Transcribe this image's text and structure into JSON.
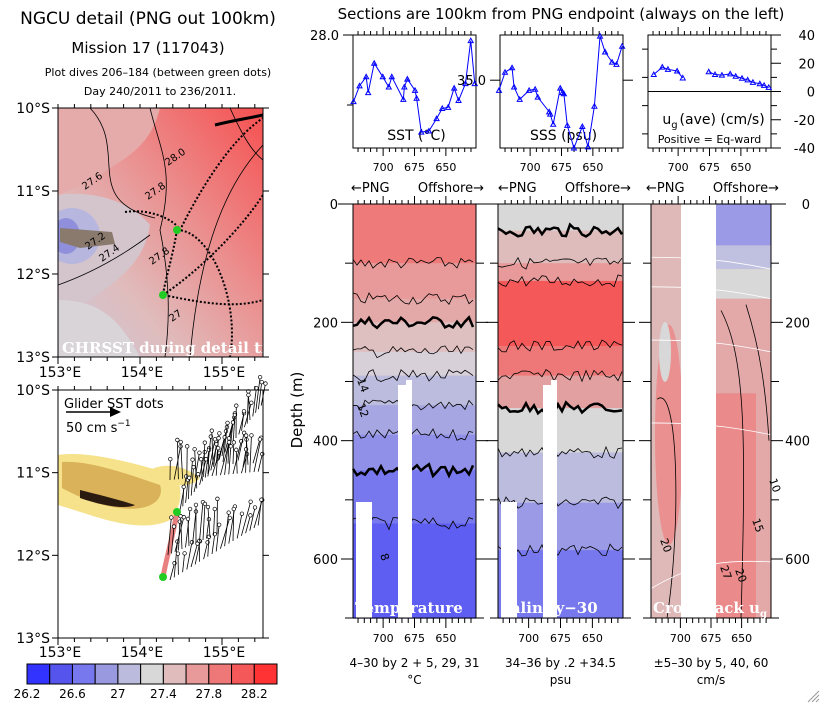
{
  "header": {
    "title": "NGCU detail (PNG out 100km)",
    "mission": "Mission 17 (117043)",
    "dives": "Plot dives 206–184 (between green dots)",
    "days": "Day 240/2011 to 236/2011.",
    "sections_title": "Sections are 100km from PNG endpoint (always on the left)"
  },
  "maps": {
    "lat_labels": [
      "10°S",
      "11°S",
      "12°S",
      "13°S"
    ],
    "lon_labels": [
      "153°E",
      "154°E",
      "155°E"
    ],
    "top": {
      "overlay_label": "GHRSST during detail time",
      "contour_labels": [
        "28.0",
        "27.6",
        "27.8",
        "27.2",
        "27.4",
        "27.8",
        "27"
      ]
    },
    "bottom": {
      "legend_label": "Glider SST dots",
      "scale_label": "50 cm s",
      "scale_exp": "−1"
    },
    "colors": {
      "track_dots": "#000000",
      "green_dots": "#22cc22",
      "track_line": "#e88080"
    }
  },
  "colorbar": {
    "labels": [
      "26.2",
      "26.6",
      "27",
      "27.4",
      "27.8",
      "28.2"
    ],
    "colors": [
      "#3333ff",
      "#5555ee",
      "#7777ee",
      "#9999e0",
      "#bbbbdd",
      "#d8d8d8",
      "#e0bcbc",
      "#e89a9a",
      "#ee7878",
      "#f45858",
      "#ff3333"
    ]
  },
  "direction_labels": {
    "left": "←PNG",
    "right": "Offshore→"
  },
  "depth_label": "Depth (m)",
  "chart_data": [
    {
      "type": "line",
      "id": "sst",
      "label": "SST (°C)",
      "xlim": [
        724,
        626
      ],
      "xticks": [
        700,
        675,
        650
      ],
      "ylim": [
        27.0,
        28.0
      ],
      "ytick_label": "28.0",
      "color": "#0000ff",
      "segments": [
        [
          [
            723.6,
            27.41
          ],
          [
            718.8,
            27.55
          ],
          [
            713.5,
            27.63
          ],
          [
            711.9,
            27.49
          ],
          [
            707.1,
            27.75
          ],
          [
            700.3,
            27.63
          ],
          [
            695.5,
            27.54
          ],
          [
            693.1,
            27.63
          ],
          [
            683.9,
            27.43
          ],
          [
            683.1,
            27.54
          ],
          [
            680.7,
            27.61
          ],
          [
            674.6,
            27.51
          ],
          [
            673.3,
            27.44
          ],
          [
            669.6,
            27.14
          ],
          [
            663.5,
            27.15
          ],
          [
            657.4,
            27.26
          ],
          [
            652.9,
            27.35
          ],
          [
            648.2,
            27.36
          ],
          [
            643.4,
            27.53
          ],
          [
            639.9,
            27.42
          ],
          [
            634.4,
            27.57
          ],
          [
            630.2,
            27.95
          ],
          [
            627.0,
            27.57
          ]
        ]
      ]
    },
    {
      "type": "line",
      "id": "sss",
      "label": "SSS (psu)",
      "xlim": [
        724,
        626
      ],
      "xticks": [
        700,
        675,
        650
      ],
      "ylim": [
        34.4,
        35.4
      ],
      "ytick_label": "35.0",
      "color": "#0000ff",
      "segments": [
        [
          [
            724.8,
            34.91
          ],
          [
            720.0,
            35.07
          ],
          [
            714.4,
            35.11
          ],
          [
            712.8,
            34.94
          ],
          [
            708.3,
            34.83
          ],
          [
            700.8,
            34.91
          ],
          [
            696.0,
            34.92
          ],
          [
            693.9,
            34.85
          ],
          [
            684.8,
            34.72
          ],
          [
            684.0,
            34.7
          ],
          [
            681.6,
            34.61
          ],
          [
            676.0,
            34.93
          ],
          [
            674.2,
            34.89
          ],
          [
            673.1,
            34.88
          ],
          [
            670.4,
            34.6
          ],
          [
            665.1,
            34.4
          ],
          [
            658.4,
            34.59
          ],
          [
            653.9,
            34.41
          ],
          [
            648.8,
            34.77
          ],
          [
            644.3,
            35.39
          ],
          [
            640.3,
            35.25
          ],
          [
            634.7,
            35.16
          ],
          [
            631.2,
            35.14
          ],
          [
            626.7,
            35.3
          ]
        ]
      ]
    },
    {
      "type": "line",
      "id": "ug",
      "label": "u",
      "label_sub": "g",
      "label_rest": "(ave) (cm/s)",
      "note": "Positive = Eq-ward",
      "xlim": [
        724,
        626
      ],
      "xticks": [
        700,
        675,
        650
      ],
      "ylim": [
        -40,
        40
      ],
      "yticks": [
        40,
        20,
        0,
        -20,
        -40
      ],
      "color": "#0000ff",
      "segments": [
        [
          [
            719.4,
            12.0
          ],
          [
            712.6,
            17.3
          ],
          [
            708.1,
            15.7
          ],
          [
            700.8,
            14.5
          ],
          [
            696.3,
            9.6
          ]
        ],
        [
          [
            675.6,
            14.0
          ],
          [
            670.6,
            12.0
          ],
          [
            665.1,
            11.6
          ],
          [
            658.5,
            12.5
          ],
          [
            654.1,
            10.8
          ],
          [
            649.1,
            9.4
          ],
          [
            644.6,
            8.2
          ],
          [
            640.4,
            6.5
          ],
          [
            634.9,
            5.5
          ],
          [
            631.5,
            4.3
          ],
          [
            627.8,
            2.9
          ]
        ]
      ]
    },
    {
      "type": "heatmap",
      "id": "temperature",
      "label": "Temperature",
      "caption": "4–30 by 2 + 5, 29, 31",
      "unit": "°C",
      "xlim": [
        724,
        626
      ],
      "xticks": [
        700,
        675,
        650
      ],
      "ylim": [
        0,
        700
      ],
      "yticks": [
        0,
        200,
        400,
        600
      ],
      "contour_labels": [
        "14",
        "12",
        "8"
      ],
      "bands": [
        {
          "top": 0,
          "bottom": 100,
          "color": "#ee7a7a"
        },
        {
          "top": 100,
          "bottom": 160,
          "color": "#e89a9a"
        },
        {
          "top": 160,
          "bottom": 200,
          "color": "#e3a8a8"
        },
        {
          "top": 200,
          "bottom": 250,
          "color": "#dfc0c0"
        },
        {
          "top": 250,
          "bottom": 290,
          "color": "#d8d0d8"
        },
        {
          "top": 290,
          "bottom": 340,
          "color": "#bcbcde"
        },
        {
          "top": 340,
          "bottom": 390,
          "color": "#a6a6e2"
        },
        {
          "top": 390,
          "bottom": 450,
          "color": "#9090e8"
        },
        {
          "top": 450,
          "bottom": 540,
          "color": "#7878ee"
        },
        {
          "top": 540,
          "bottom": 700,
          "color": "#5e5ef2"
        }
      ],
      "thick_contours": [
        210,
        445
      ]
    },
    {
      "type": "heatmap",
      "id": "salinity",
      "label": "Salinity−30",
      "caption": "34–36 by .2 +34.5",
      "unit": "psu",
      "xlim": [
        724,
        626
      ],
      "xticks": [
        700,
        675,
        650
      ],
      "ylim": [
        0,
        700
      ],
      "yticks": [
        0,
        200,
        400,
        600
      ],
      "bands": [
        {
          "top": 0,
          "bottom": 45,
          "color": "#d8d8d8"
        },
        {
          "top": 45,
          "bottom": 100,
          "color": "#dfbcbc"
        },
        {
          "top": 100,
          "bottom": 130,
          "color": "#e89a9a"
        },
        {
          "top": 130,
          "bottom": 240,
          "color": "#f45858"
        },
        {
          "top": 240,
          "bottom": 290,
          "color": "#ee7878"
        },
        {
          "top": 290,
          "bottom": 345,
          "color": "#e3a0a0"
        },
        {
          "top": 345,
          "bottom": 420,
          "color": "#d8d8d8"
        },
        {
          "top": 420,
          "bottom": 505,
          "color": "#bcbcde"
        },
        {
          "top": 505,
          "bottom": 585,
          "color": "#9a9ae6"
        },
        {
          "top": 585,
          "bottom": 700,
          "color": "#7878ee"
        }
      ],
      "thick_contours": [
        40,
        345
      ]
    },
    {
      "type": "heatmap",
      "id": "crosstrack",
      "label": "Crosstrack u",
      "label_sub": "g",
      "caption": "±5–30 by 5, 40, 60",
      "unit": "cm/s",
      "xlim": [
        724,
        626
      ],
      "xticks": [
        700,
        675,
        650
      ],
      "ylim": [
        0,
        700
      ],
      "yticks": [
        0,
        200,
        400,
        600
      ],
      "contour_labels": [
        "10",
        "15",
        "20",
        "20",
        "27"
      ]
    }
  ]
}
